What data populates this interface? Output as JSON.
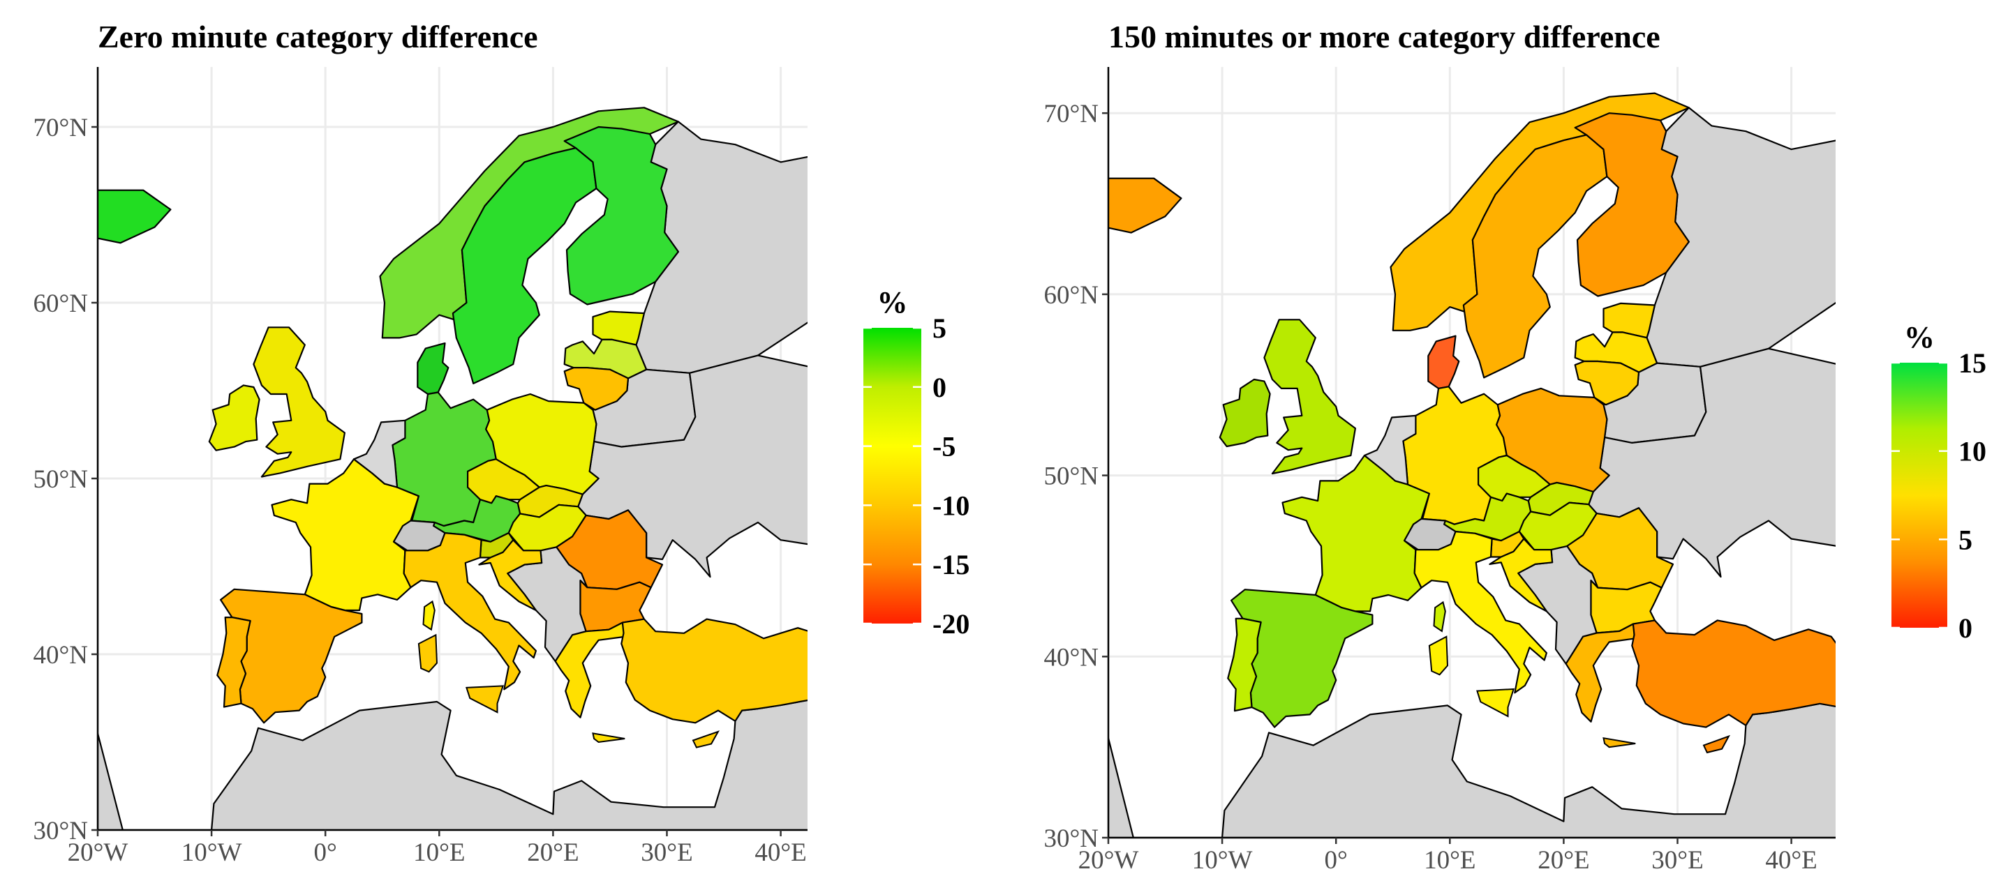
{
  "panels": [
    {
      "title": "Zero minute category difference",
      "legend": {
        "title": "%",
        "ticks": [
          "5",
          "0",
          "-5",
          "-10",
          "-15",
          "-20"
        ],
        "colors": [
          "#00e000",
          "#bfee00",
          "#ffff00",
          "#ffc800",
          "#ff8800",
          "#ff2000"
        ]
      },
      "x_ticks": [
        "20°W",
        "10°W",
        "0°",
        "10°E",
        "20°E",
        "30°E",
        "40°E"
      ],
      "y_ticks": [
        "70°N",
        "60°N",
        "50°N",
        "40°N",
        "30°N"
      ],
      "region_colors": {
        "iceland": "#22dd22",
        "norway": "#77e033",
        "sweden": "#2cdd2c",
        "finland": "#33dd33",
        "denmark": "#22cc22",
        "estonia": "#e6f000",
        "latvia": "#ccee33",
        "lithuania": "#ffc000",
        "uk": "#f0e800",
        "ireland": "#e8f000",
        "france": "#fff000",
        "spain": "#ffb000",
        "portugal": "#ffb800",
        "germany": "#55d833",
        "poland": "#eef200",
        "czechia": "#f4e200",
        "austria": "#55d833",
        "switzerland": "#c8c8c8",
        "italy": "#ffcc00",
        "hungary": "#e8ee00",
        "slovakia": "#f0e000",
        "romania": "#ff9000",
        "bulgaria": "#ff9800",
        "greece": "#ffe000",
        "turkey": "#ffcc00",
        "benelux": "#d8d8d8",
        "slovenia": "#ccd800",
        "croatia": "#ffd600"
      }
    },
    {
      "title": "150 minutes or more category difference",
      "legend": {
        "title": "%",
        "ticks": [
          "15",
          "10",
          "5",
          "0"
        ],
        "colors": [
          "#00e040",
          "#b0ee00",
          "#ffe000",
          "#ff9000",
          "#ff2000"
        ]
      },
      "x_ticks": [
        "20°W",
        "10°W",
        "0°",
        "10°E",
        "20°E",
        "30°E",
        "40°E"
      ],
      "y_ticks": [
        "70°N",
        "60°N",
        "50°N",
        "40°N",
        "30°N"
      ],
      "region_colors": {
        "iceland": "#ffa000",
        "norway": "#ffc000",
        "sweden": "#ffb000",
        "finland": "#ff9900",
        "denmark": "#ff6020",
        "estonia": "#ffd800",
        "latvia": "#ffe000",
        "lithuania": "#ffd000",
        "uk": "#b8ea00",
        "ireland": "#a6e000",
        "france": "#ccf000",
        "spain": "#88e010",
        "portugal": "#c0ee00",
        "germany": "#ffe000",
        "poland": "#ffa800",
        "czechia": "#d8ee00",
        "austria": "#c8ec00",
        "switzerland": "#c8c8c8",
        "italy": "#fff000",
        "hungary": "#d0ee00",
        "slovakia": "#c8ea00",
        "romania": "#ffcc00",
        "bulgaria": "#ffd800",
        "greece": "#ffb800",
        "turkey": "#ff8a00",
        "benelux": "#d8d8d8",
        "slovenia": "#ffd000",
        "croatia": "#ffe800"
      }
    }
  ]
}
